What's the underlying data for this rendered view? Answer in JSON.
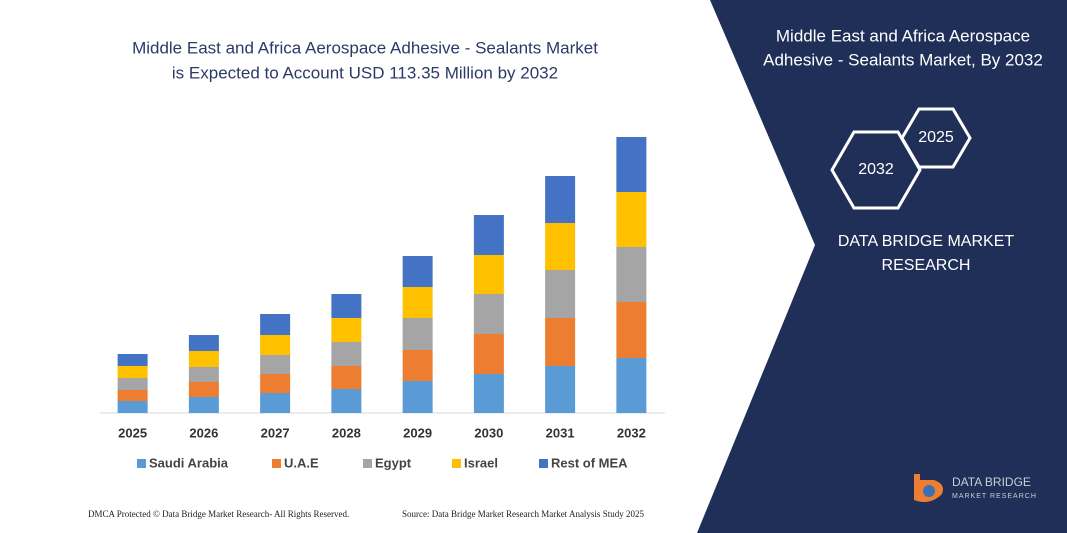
{
  "chart_data": {
    "type": "bar",
    "stacked": true,
    "title": [
      "Middle East and Africa Aerospace Adhesive - Sealants Market",
      "is Expected to Account USD 113.35 Million by 2032"
    ],
    "categories": [
      "2025",
      "2026",
      "2027",
      "2028",
      "2029",
      "2030",
      "2031",
      "2032"
    ],
    "series": [
      {
        "name": "Saudi Arabia",
        "color": "#5b9bd5",
        "values": [
          12,
          16,
          20,
          24,
          32,
          39,
          47,
          55
        ]
      },
      {
        "name": "U.A.E",
        "color": "#ed7d31",
        "values": [
          11,
          15,
          19,
          23,
          31,
          40,
          48,
          56
        ]
      },
      {
        "name": "Egypt",
        "color": "#a5a5a5",
        "values": [
          12,
          15,
          19,
          24,
          32,
          40,
          48,
          55
        ]
      },
      {
        "name": "Israel",
        "color": "#ffc000",
        "values": [
          12,
          16,
          20,
          24,
          31,
          39,
          47,
          55
        ]
      },
      {
        "name": "Rest of MEA",
        "color": "#4472c4",
        "values": [
          12,
          16,
          21,
          24,
          31,
          40,
          47,
          55
        ]
      }
    ],
    "ylim": [
      0,
      290
    ]
  },
  "panel": {
    "title": [
      "Middle East and Africa Aerospace",
      "Adhesive - Sealants Market, By 2032"
    ],
    "badges": [
      "2025",
      "2032"
    ],
    "brand": [
      "DATA BRIDGE MARKET",
      "RESEARCH"
    ]
  },
  "logo": [
    "DATA BRIDGE",
    "MARKET RESEARCH"
  ],
  "footer": {
    "left": "DMCA Protected © Data Bridge Market Research- All Rights Reserved.",
    "right": "Source: Data Bridge Market Research Market Analysis Study 2025"
  }
}
